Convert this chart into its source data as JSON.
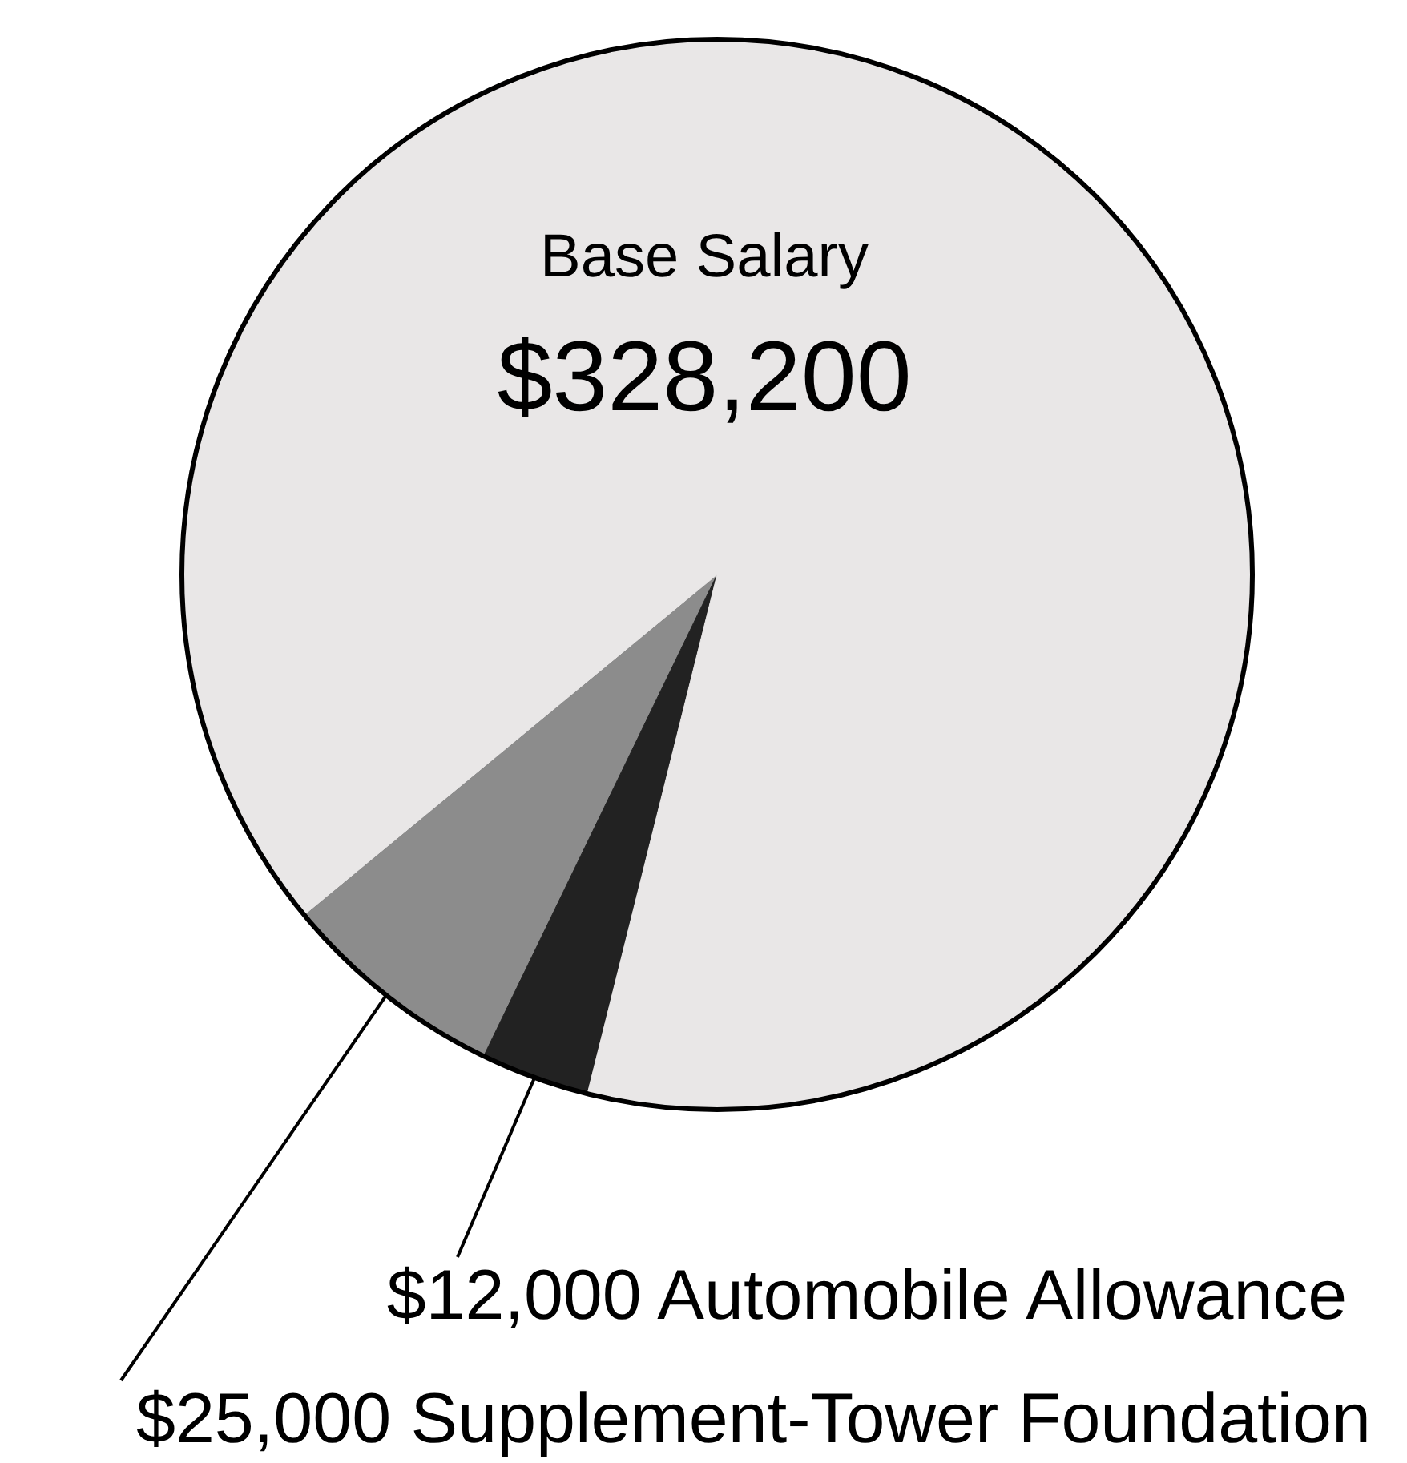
{
  "chart_data": {
    "type": "pie",
    "categories": [
      "Supplement-Tower Foundation",
      "Automobile Allowance",
      "Base Salary"
    ],
    "values": [
      25000,
      12000,
      328200
    ],
    "value_labels": [
      "$25,000",
      "$12,000",
      "$328,200"
    ],
    "colors": [
      "#8c8c8c",
      "#222222",
      "#e9e7e7"
    ]
  }
}
